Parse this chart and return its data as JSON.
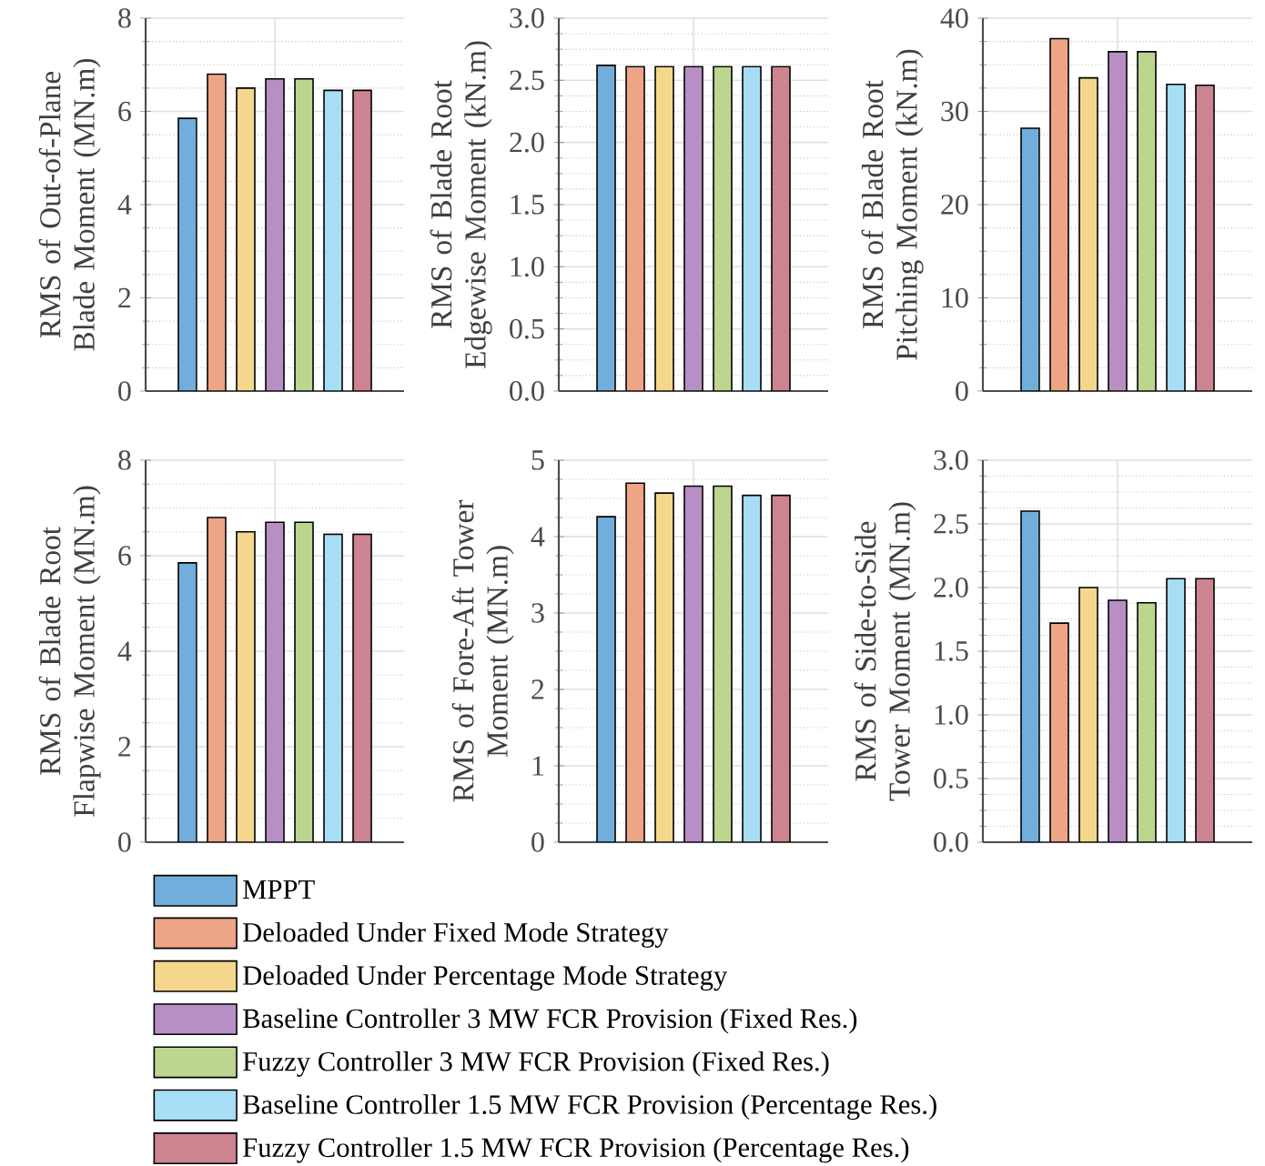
{
  "chart_data": [
    {
      "type": "bar",
      "ylabel": "RMS of Out-of-Plane Blade Moment (MN.m)",
      "categories": [
        null
      ],
      "ylim": [
        0,
        8
      ],
      "yticks": [
        0,
        2,
        4,
        6,
        8
      ],
      "grid": true,
      "series": [
        {
          "color": "#72aedb",
          "values": [
            5.85
          ]
        },
        {
          "color": "#eea587",
          "values": [
            6.8
          ]
        },
        {
          "color": "#f4d78c",
          "values": [
            6.5
          ]
        },
        {
          "color": "#b78fc5",
          "values": [
            6.7
          ]
        },
        {
          "color": "#bcd58f",
          "values": [
            6.7
          ]
        },
        {
          "color": "#a8def5",
          "values": [
            6.45
          ]
        },
        {
          "color": "#cc8491",
          "values": [
            6.45
          ]
        }
      ]
    },
    {
      "type": "bar",
      "ylabel": "RMS of Blade Root Edgewise Moment (kN.m)",
      "categories": [
        null
      ],
      "ylim": [
        0,
        3
      ],
      "yticks": [
        {
          "value": 0,
          "label": "0.0"
        },
        {
          "value": 0.5,
          "label": "0.5"
        },
        {
          "value": 1,
          "label": "1.0"
        },
        {
          "value": 1.5,
          "label": "1.5"
        },
        {
          "value": 2,
          "label": "2.0"
        },
        {
          "value": 2.5,
          "label": "2.5"
        },
        {
          "value": 3,
          "label": "3.0"
        }
      ],
      "grid": true,
      "series": [
        {
          "color": "#72aedb",
          "values": [
            2.62
          ]
        },
        {
          "color": "#eea587",
          "values": [
            2.61
          ]
        },
        {
          "color": "#f4d78c",
          "values": [
            2.61
          ]
        },
        {
          "color": "#b78fc5",
          "values": [
            2.61
          ]
        },
        {
          "color": "#bcd58f",
          "values": [
            2.61
          ]
        },
        {
          "color": "#a8def5",
          "values": [
            2.61
          ]
        },
        {
          "color": "#cc8491",
          "values": [
            2.61
          ]
        }
      ]
    },
    {
      "type": "bar",
      "ylabel": "RMS of Blade Root Pitching Moment (kN.m)",
      "categories": [
        null
      ],
      "ylim": [
        0,
        40
      ],
      "yticks": [
        0,
        10,
        20,
        30,
        40
      ],
      "grid": true,
      "series": [
        {
          "color": "#72aedb",
          "values": [
            28.2
          ]
        },
        {
          "color": "#eea587",
          "values": [
            37.8
          ]
        },
        {
          "color": "#f4d78c",
          "values": [
            33.6
          ]
        },
        {
          "color": "#b78fc5",
          "values": [
            36.4
          ]
        },
        {
          "color": "#bcd58f",
          "values": [
            36.4
          ]
        },
        {
          "color": "#a8def5",
          "values": [
            32.9
          ]
        },
        {
          "color": "#cc8491",
          "values": [
            32.8
          ]
        }
      ]
    },
    {
      "type": "bar",
      "ylabel": "RMS of Blade Root Flapwise Moment (MN.m)",
      "categories": [
        null
      ],
      "ylim": [
        0,
        8
      ],
      "yticks": [
        0,
        2,
        4,
        6,
        8
      ],
      "grid": true,
      "series": [
        {
          "color": "#72aedb",
          "values": [
            5.85
          ]
        },
        {
          "color": "#eea587",
          "values": [
            6.8
          ]
        },
        {
          "color": "#f4d78c",
          "values": [
            6.5
          ]
        },
        {
          "color": "#b78fc5",
          "values": [
            6.7
          ]
        },
        {
          "color": "#bcd58f",
          "values": [
            6.7
          ]
        },
        {
          "color": "#a8def5",
          "values": [
            6.45
          ]
        },
        {
          "color": "#cc8491",
          "values": [
            6.45
          ]
        }
      ]
    },
    {
      "type": "bar",
      "ylabel": "RMS of Fore-Aft Tower Moment (MN.m)",
      "categories": [
        null
      ],
      "ylim": [
        0,
        5
      ],
      "yticks": [
        0,
        1,
        2,
        3,
        4,
        5
      ],
      "grid": true,
      "series": [
        {
          "color": "#72aedb",
          "values": [
            4.26
          ]
        },
        {
          "color": "#eea587",
          "values": [
            4.7
          ]
        },
        {
          "color": "#f4d78c",
          "values": [
            4.57
          ]
        },
        {
          "color": "#b78fc5",
          "values": [
            4.66
          ]
        },
        {
          "color": "#bcd58f",
          "values": [
            4.66
          ]
        },
        {
          "color": "#a8def5",
          "values": [
            4.54
          ]
        },
        {
          "color": "#cc8491",
          "values": [
            4.54
          ]
        }
      ]
    },
    {
      "type": "bar",
      "ylabel": "RMS of Side-to-Side Tower Moment (MN.m)",
      "categories": [
        null
      ],
      "ylim": [
        0,
        3
      ],
      "yticks": [
        {
          "value": 0,
          "label": "0.0"
        },
        {
          "value": 0.5,
          "label": "0.5"
        },
        {
          "value": 1,
          "label": "1.0"
        },
        {
          "value": 1.5,
          "label": "1.5"
        },
        {
          "value": 2,
          "label": "2.0"
        },
        {
          "value": 2.5,
          "label": "2.5"
        },
        {
          "value": 3,
          "label": "3.0"
        }
      ],
      "grid": true,
      "legend": "bottom",
      "series": [
        {
          "name": "MPPT",
          "color": "#72aedb",
          "values": [
            2.6
          ]
        },
        {
          "name": "Deloaded Under Fixed Mode Strategy",
          "color": "#eea587",
          "values": [
            1.72
          ]
        },
        {
          "name": "Deloaded Under Percentage Mode Strategy",
          "color": "#f4d78c",
          "values": [
            2.0
          ]
        },
        {
          "name": "Baseline Controller 3 MW FCR Provision (Fixed Res.)",
          "color": "#b78fc5",
          "values": [
            1.9
          ]
        },
        {
          "name": "Fuzzy Controller 3 MW FCR Provision (Fixed Res.)",
          "color": "#bcd58f",
          "values": [
            1.88
          ]
        },
        {
          "name": "Baseline Controller 1.5 MW FCR Provision (Percentage Res.)",
          "color": "#a8def5",
          "values": [
            2.07
          ]
        },
        {
          "name": "Fuzzy Controller 1.5 MW FCR Provision (Percentage Res.)",
          "color": "#cc8491",
          "values": [
            2.07
          ]
        }
      ]
    }
  ]
}
